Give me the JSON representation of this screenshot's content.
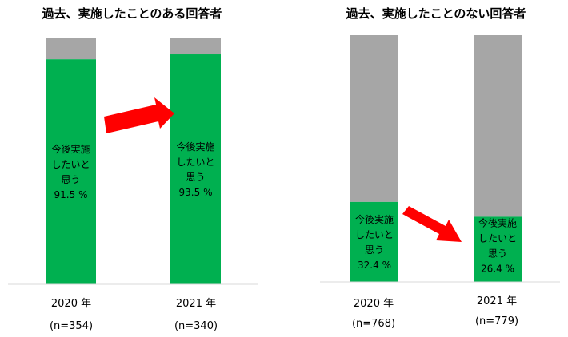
{
  "chart_data": [
    {
      "type": "bar",
      "stacked": true,
      "title": "過去、実施したことのある回答者",
      "categories": [
        "2020 年",
        "2021 年"
      ],
      "samples": [
        "(n=354)",
        "(n=340)"
      ],
      "series": [
        {
          "values": [
            91.5,
            93.5
          ]
        },
        {
          "values": [
            8.5,
            6.5
          ]
        }
      ],
      "bar_labels": [
        [
          "今後実施",
          "したいと",
          "思う",
          "91.5 %"
        ],
        [
          "今後実施",
          "したいと",
          "思う",
          "93.5 %"
        ]
      ],
      "ylim": [
        0,
        100
      ],
      "colors": [
        "#00b050",
        "#a6a6a6"
      ]
    },
    {
      "type": "bar",
      "stacked": true,
      "title": "過去、実施したことのない回答者",
      "categories": [
        "2020 年",
        "2021 年"
      ],
      "samples": [
        "(n=768)",
        "(n=779)"
      ],
      "series": [
        {
          "values": [
            32.4,
            26.4
          ]
        },
        {
          "values": [
            67.6,
            73.6
          ]
        }
      ],
      "bar_labels": [
        [
          "今後実施",
          "したいと",
          "思う",
          "32.4 %"
        ],
        [
          "今後実施",
          "したいと",
          "思う",
          "26.4 %"
        ]
      ],
      "ylim": [
        0,
        100
      ],
      "colors": [
        "#00b050",
        "#a6a6a6"
      ]
    }
  ],
  "arrow_color": "#ff0000",
  "axis_color": "#d9d9d9"
}
